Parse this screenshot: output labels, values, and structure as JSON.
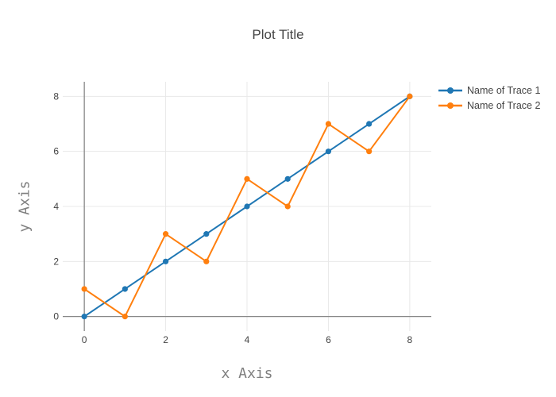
{
  "title": "Plot Title",
  "chart_data": {
    "type": "line",
    "title": "Plot Title",
    "xlabel": "x Axis",
    "ylabel": "y Axis",
    "x": [
      0,
      1,
      2,
      3,
      4,
      5,
      6,
      7,
      8
    ],
    "series": [
      {
        "name": "Name of Trace 1",
        "color": "#1f77b4",
        "values": [
          0,
          1,
          2,
          3,
          4,
          5,
          6,
          7,
          8
        ]
      },
      {
        "name": "Name of Trace 2",
        "color": "#ff7f0e",
        "values": [
          1,
          0,
          3,
          2,
          5,
          4,
          7,
          6,
          8
        ]
      }
    ],
    "xticks": [
      0,
      2,
      4,
      6,
      8
    ],
    "yticks": [
      0,
      2,
      4,
      6,
      8
    ],
    "xlim": [
      -0.53,
      8.53
    ],
    "ylim": [
      -0.53,
      8.53
    ],
    "grid": true,
    "zeroline": true,
    "legend_position": "right",
    "marker": "circle",
    "mode": "lines+markers",
    "colors": {
      "grid": "#e8e8e8",
      "zeroline": "#888888",
      "tick_text": "#444444",
      "title_text": "#444444",
      "axis_title_text": "#7f7f7f",
      "background": "#ffffff"
    }
  }
}
